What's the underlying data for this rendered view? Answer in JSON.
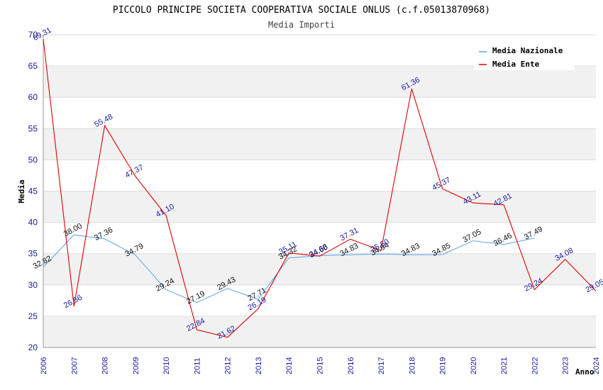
{
  "chart_data": {
    "type": "line",
    "title": "PICCOLO PRINCIPE SOCIETA COOPERATIVA SOCIALE ONLUS (c.f.05013870968)",
    "subtitle": "Media Importi",
    "xlabel": "Anno",
    "ylabel": "Media",
    "ylim": [
      20,
      70
    ],
    "yticks": [
      20,
      25,
      30,
      35,
      40,
      45,
      50,
      55,
      60,
      65,
      70
    ],
    "ytick_labels": [
      "20",
      "25",
      "30",
      "35",
      "40",
      "45",
      "50",
      "55",
      "60",
      "65",
      "70"
    ],
    "categories": [
      "2006",
      "2007",
      "2008",
      "2009",
      "2010",
      "2011",
      "2012",
      "2013",
      "2014",
      "2015",
      "2016",
      "2017",
      "2018",
      "2019",
      "2020",
      "2021",
      "2022",
      "2023",
      "2024"
    ],
    "legend_position": "top-right",
    "grid": true,
    "series": [
      {
        "name": "Media Nazionale",
        "color": "#5aa3e8",
        "values": [
          32.82,
          38.0,
          37.36,
          34.79,
          29.24,
          27.19,
          29.43,
          27.71,
          34.32,
          34.68,
          34.83,
          34.94,
          34.83,
          34.85,
          37.05,
          36.46,
          37.49,
          null,
          null
        ],
        "labels": [
          "32.82",
          "38.00",
          "37.36",
          "34.79",
          "29.24",
          "27.19",
          "29.43",
          "27.71",
          "34.32",
          "34.68",
          "34.83",
          "34.94",
          "34.83",
          "34.85",
          "37.05",
          "36.46",
          "37.49",
          null,
          null
        ]
      },
      {
        "name": "Media Ente",
        "color": "#e00000",
        "values": [
          69.31,
          26.56,
          55.48,
          47.37,
          41.1,
          22.84,
          21.62,
          26.19,
          35.11,
          34.6,
          37.31,
          35.5,
          61.36,
          45.37,
          43.11,
          42.81,
          29.24,
          34.08,
          29.05
        ],
        "labels": [
          "69.31",
          "26.56",
          "55.48",
          "47.37",
          "41.10",
          "22.84",
          "21.62",
          "26.19",
          "35.11",
          "34.60",
          "37.31",
          "35.50",
          "61.36",
          "45.37",
          "43.11",
          "42.81",
          "29.24",
          "34.08",
          "29.05"
        ]
      }
    ]
  }
}
